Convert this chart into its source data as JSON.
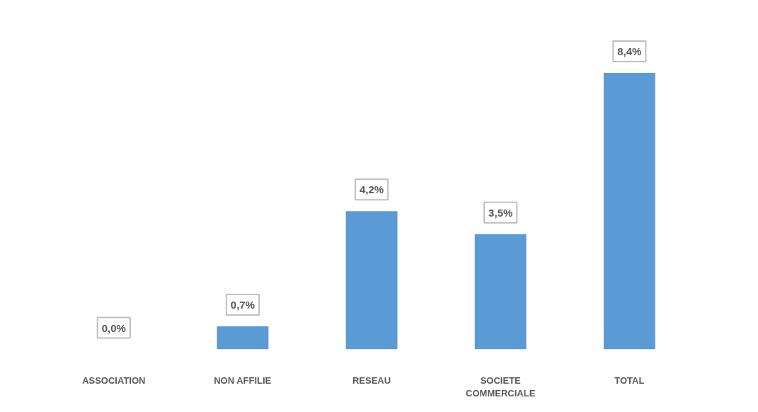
{
  "chart_data": {
    "type": "bar",
    "categories": [
      "ASSOCIATION",
      "NON AFFILIE",
      "RESEAU",
      "SOCIETE COMMERCIALE",
      "TOTAL"
    ],
    "values": [
      0.0,
      0.7,
      4.2,
      3.5,
      8.4
    ],
    "color": "#5b9bd5",
    "value_labels": [
      "0,0%",
      "0,7%",
      "4,2%",
      "3,5%",
      "8,4%"
    ]
  }
}
